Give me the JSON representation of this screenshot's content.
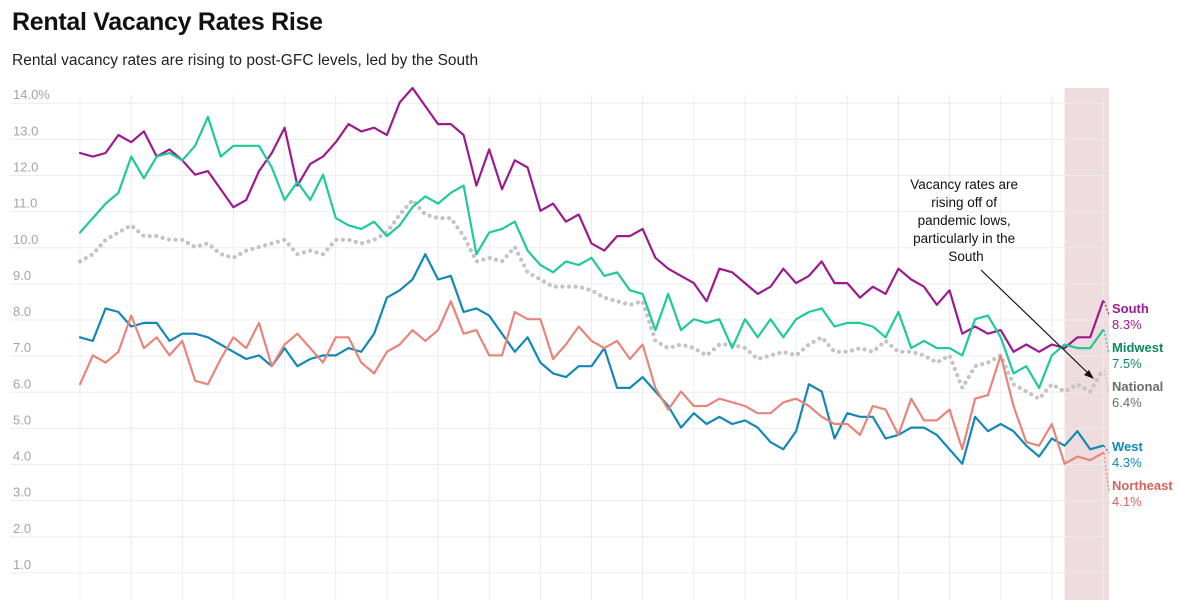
{
  "chart_data": {
    "type": "line",
    "title": "Rental Vacancy Rates Rise",
    "subtitle": "Rental vacancy rates are rising to post-GFC levels, led by the South",
    "ylim": [
      0.5,
      14.2
    ],
    "yticks": [
      "14.0%",
      "13.0",
      "12.0",
      "11.0",
      "10.0",
      "9.0",
      "8.0",
      "7.0",
      "6.0",
      "5.0",
      "4.0",
      "3.0",
      "2.0",
      "1.0"
    ],
    "ytick_values": [
      14,
      13,
      12,
      11,
      10,
      9,
      8,
      7,
      6,
      5,
      4,
      3,
      2,
      1
    ],
    "quarters": 80,
    "highlight_from_quarter": 77,
    "annotation": [
      "Vacancy rates are",
      "rising off of",
      "pandemic lows,",
      "particularly in the",
      "South"
    ],
    "series": [
      {
        "name": "South",
        "value_label": "8.3%",
        "color": "#9c1a8f",
        "dotted": false,
        "values": [
          12.4,
          12.3,
          12.4,
          12.9,
          12.7,
          13.0,
          12.3,
          12.5,
          12.2,
          11.8,
          11.9,
          11.4,
          10.9,
          11.1,
          11.9,
          12.4,
          13.1,
          11.5,
          12.1,
          12.3,
          12.7,
          13.2,
          13.0,
          13.1,
          12.9,
          13.8,
          14.2,
          13.7,
          13.2,
          13.2,
          12.9,
          11.5,
          12.5,
          11.4,
          12.2,
          12.0,
          10.8,
          11.0,
          10.5,
          10.7,
          9.9,
          9.7,
          10.1,
          10.1,
          10.3,
          9.5,
          9.2,
          9.0,
          8.8,
          8.3,
          9.2,
          9.1,
          8.8,
          8.5,
          8.7,
          9.2,
          8.8,
          9.0,
          9.4,
          8.8,
          8.8,
          8.4,
          8.7,
          8.5,
          9.2,
          8.9,
          8.7,
          8.2,
          8.6,
          7.4,
          7.6,
          7.4,
          7.5,
          6.9,
          7.1,
          6.9,
          7.1,
          7.0,
          7.3,
          7.3,
          8.3
        ]
      },
      {
        "name": "Midwest",
        "value_label": "7.5%",
        "color": "#1ec99a",
        "dotted": false,
        "values": [
          10.2,
          10.6,
          11.0,
          11.3,
          12.3,
          11.7,
          12.3,
          12.4,
          12.2,
          12.6,
          13.4,
          12.3,
          12.6,
          12.6,
          12.6,
          12.0,
          11.1,
          11.6,
          11.1,
          11.8,
          10.6,
          10.4,
          10.3,
          10.5,
          10.1,
          10.4,
          10.9,
          11.2,
          11.0,
          11.3,
          11.5,
          9.6,
          10.2,
          10.3,
          10.5,
          9.7,
          9.3,
          9.1,
          9.4,
          9.3,
          9.5,
          9.0,
          9.1,
          8.6,
          8.5,
          7.5,
          8.5,
          7.5,
          7.8,
          7.7,
          7.8,
          7.0,
          7.8,
          7.3,
          7.8,
          7.3,
          7.8,
          8.0,
          8.1,
          7.6,
          7.7,
          7.7,
          7.6,
          7.3,
          8.0,
          7.0,
          7.2,
          7.0,
          7.0,
          6.8,
          7.8,
          7.9,
          7.3,
          6.3,
          6.5,
          5.9,
          6.8,
          7.1,
          7.0,
          7.0,
          7.5
        ]
      },
      {
        "name": "National",
        "value_label": "6.4%",
        "color": "#c4c4c4",
        "dotted": true,
        "values": [
          9.4,
          9.6,
          10.0,
          10.2,
          10.4,
          10.1,
          10.1,
          10.0,
          10.0,
          9.8,
          9.9,
          9.6,
          9.5,
          9.7,
          9.8,
          9.9,
          10.0,
          9.6,
          9.7,
          9.6,
          10.0,
          10.0,
          9.9,
          10.0,
          10.2,
          10.7,
          11.1,
          10.7,
          10.6,
          10.6,
          10.1,
          9.4,
          9.5,
          9.4,
          9.8,
          9.1,
          8.9,
          8.7,
          8.7,
          8.7,
          8.6,
          8.4,
          8.3,
          8.2,
          8.3,
          7.2,
          7.0,
          7.1,
          7.0,
          6.8,
          7.1,
          7.1,
          7.0,
          6.7,
          6.8,
          6.9,
          6.8,
          7.1,
          7.3,
          6.9,
          6.9,
          7.0,
          6.9,
          7.2,
          6.9,
          6.9,
          6.8,
          6.6,
          6.8,
          5.9,
          6.5,
          6.6,
          6.8,
          6.0,
          5.8,
          5.6,
          6.0,
          5.8,
          6.0,
          5.8,
          6.4
        ]
      },
      {
        "name": "West",
        "value_label": "4.3%",
        "color": "#1387b5",
        "dotted": false,
        "values": [
          7.3,
          7.2,
          8.1,
          8.0,
          7.6,
          7.7,
          7.7,
          7.2,
          7.4,
          7.4,
          7.3,
          7.1,
          6.9,
          6.7,
          6.8,
          6.5,
          7.0,
          6.5,
          6.7,
          6.8,
          6.8,
          7.0,
          6.9,
          7.4,
          8.4,
          8.6,
          8.9,
          9.6,
          8.9,
          9.0,
          8.0,
          8.1,
          7.9,
          7.4,
          6.9,
          7.3,
          6.6,
          6.3,
          6.2,
          6.5,
          6.5,
          7.0,
          5.9,
          5.9,
          6.2,
          5.8,
          5.4,
          4.8,
          5.2,
          4.9,
          5.1,
          4.9,
          5.0,
          4.8,
          4.4,
          4.2,
          4.7,
          6.0,
          5.8,
          4.5,
          5.2,
          5.1,
          5.1,
          4.5,
          4.6,
          4.8,
          4.8,
          4.6,
          4.2,
          3.8,
          5.1,
          4.7,
          4.9,
          4.7,
          4.3,
          4.0,
          4.5,
          4.3,
          4.7,
          4.2,
          4.3
        ]
      },
      {
        "name": "Northeast",
        "value_label": "4.1%",
        "color": "#e8857a",
        "dotted": false,
        "values": [
          6.0,
          6.8,
          6.6,
          6.9,
          7.9,
          7.0,
          7.3,
          6.8,
          7.2,
          6.1,
          6.0,
          6.7,
          7.3,
          7.0,
          7.7,
          6.5,
          7.1,
          7.4,
          7.0,
          6.6,
          7.3,
          7.3,
          6.6,
          6.3,
          6.9,
          7.1,
          7.5,
          7.2,
          7.5,
          8.3,
          7.4,
          7.5,
          6.8,
          6.8,
          8.0,
          7.8,
          7.8,
          6.7,
          7.1,
          7.6,
          7.2,
          7.0,
          7.2,
          6.7,
          7.1,
          5.9,
          5.3,
          5.8,
          5.4,
          5.4,
          5.6,
          5.5,
          5.4,
          5.2,
          5.2,
          5.5,
          5.6,
          5.4,
          5.1,
          4.9,
          4.9,
          4.6,
          5.4,
          5.3,
          4.6,
          5.6,
          5.0,
          5.0,
          5.3,
          4.2,
          5.6,
          5.7,
          6.8,
          5.4,
          4.4,
          4.3,
          4.9,
          3.8,
          4.0,
          3.9,
          4.1
        ]
      }
    ]
  }
}
